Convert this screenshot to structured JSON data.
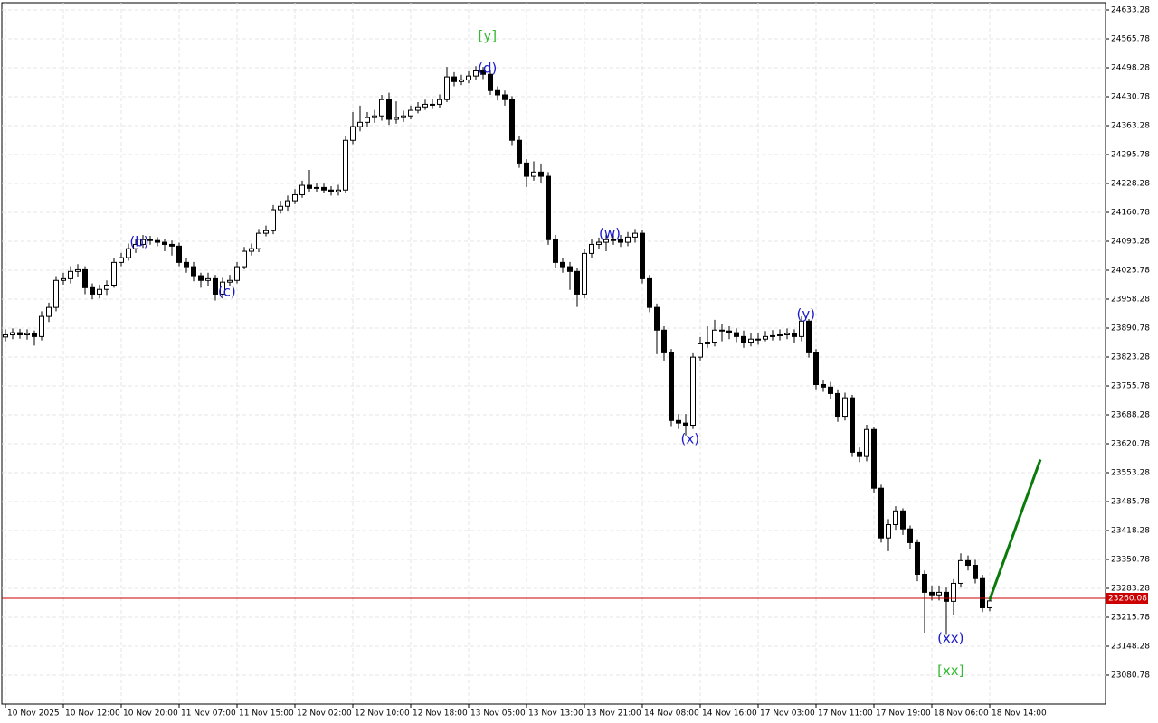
{
  "chart_data": {
    "type": "candlestick",
    "open": [
      23870,
      23875,
      23880,
      23875,
      23878,
      23871,
      23918,
      23939,
      24002,
      24006,
      24023,
      24027,
      23985,
      23970,
      23981,
      23991,
      24044,
      24055,
      24076,
      24086,
      24097,
      24095,
      24091,
      24086,
      24082,
      24044,
      24034,
      24013,
      24002,
      24006,
      23970,
      23998,
      24002,
      24034,
      24070,
      24076,
      24112,
      24118,
      24167,
      24175,
      24188,
      24202,
      24224,
      24217,
      24219,
      24213,
      24209,
      24213,
      24329,
      24361,
      24371,
      24382,
      24386,
      24424,
      24378,
      24382,
      24386,
      24399,
      24407,
      24413,
      24413,
      24424,
      24477,
      24466,
      24470,
      24479,
      24491,
      24483,
      24445,
      24435,
      24424,
      24329,
      24276,
      24245,
      24255,
      24245,
      24097,
      24044,
      24034,
      24023,
      23970,
      24065,
      24086,
      24091,
      24097,
      24097,
      24091,
      24103,
      24112,
      24006,
      23939,
      23886,
      23833,
      23675,
      23669,
      23664,
      23823,
      23854,
      23858,
      23886,
      23884,
      23880,
      23871,
      23858,
      23865,
      23865,
      23871,
      23873,
      23875,
      23878,
      23871,
      23907,
      23833,
      23759,
      23753,
      23738,
      23685,
      23728,
      23601,
      23591,
      23654,
      23517,
      23401,
      23432,
      23464,
      23422,
      23390,
      23316,
      23274,
      23268,
      23274,
      23253,
      23295,
      23348,
      23337,
      23306,
      23238
    ],
    "high": [
      23888,
      23890,
      23889,
      23888,
      23885,
      23930,
      23950,
      24012,
      24020,
      24035,
      24040,
      24035,
      23995,
      23992,
      24002,
      24055,
      24066,
      24088,
      24098,
      24108,
      24106,
      24103,
      24098,
      24095,
      24090,
      24055,
      24045,
      24020,
      24020,
      24015,
      24008,
      24015,
      24045,
      24080,
      24088,
      24122,
      24130,
      24178,
      24188,
      24200,
      24215,
      24235,
      24260,
      24230,
      24228,
      24222,
      24225,
      24340,
      24395,
      24410,
      24395,
      24400,
      24435,
      24440,
      24420,
      24398,
      24410,
      24418,
      24424,
      24425,
      24436,
      24500,
      24488,
      24482,
      24490,
      24502,
      24500,
      24492,
      24455,
      24445,
      24432,
      24338,
      24285,
      24280,
      24275,
      24255,
      24108,
      24055,
      24045,
      24030,
      24075,
      24098,
      24102,
      24108,
      24110,
      24108,
      24115,
      24122,
      24120,
      24015,
      23948,
      23895,
      23842,
      23690,
      23690,
      23832,
      23870,
      23895,
      23910,
      23900,
      23895,
      23890,
      23885,
      23878,
      23880,
      23884,
      23886,
      23888,
      23890,
      23888,
      23918,
      23912,
      23842,
      23770,
      23765,
      23748,
      23740,
      23735,
      23612,
      23665,
      23660,
      23525,
      23445,
      23475,
      23470,
      23430,
      23398,
      23325,
      23290,
      23290,
      23285,
      23305,
      23365,
      23360,
      23350,
      23315,
      23265
    ],
    "low": [
      23860,
      23865,
      23866,
      23864,
      23850,
      23862,
      23905,
      23930,
      23992,
      23995,
      24010,
      23970,
      23958,
      23960,
      23968,
      23985,
      24035,
      24048,
      24066,
      24078,
      24085,
      24082,
      24070,
      24060,
      24035,
      24020,
      24000,
      23985,
      23990,
      23955,
      23960,
      23988,
      23995,
      24028,
      24060,
      24068,
      24105,
      24110,
      24158,
      24165,
      24180,
      24195,
      24208,
      24208,
      24205,
      24200,
      24200,
      24205,
      24320,
      24350,
      24360,
      24370,
      24375,
      24365,
      24368,
      24372,
      24378,
      24392,
      24400,
      24402,
      24405,
      24418,
      24455,
      24458,
      24462,
      24470,
      24472,
      24435,
      24422,
      24410,
      24318,
      24265,
      24220,
      24235,
      24230,
      24085,
      24030,
      24020,
      23980,
      23940,
      23960,
      24055,
      24075,
      24070,
      24085,
      24080,
      24082,
      24090,
      23995,
      23928,
      23830,
      23815,
      23662,
      23655,
      23640,
      23655,
      23815,
      23845,
      23848,
      23860,
      23865,
      23858,
      23845,
      23848,
      23852,
      23860,
      23862,
      23862,
      23865,
      23855,
      23860,
      23822,
      23748,
      23742,
      23725,
      23672,
      23675,
      23590,
      23578,
      23580,
      23505,
      23390,
      23370,
      23420,
      23408,
      23375,
      23300,
      23180,
      23255,
      23255,
      23175,
      23220,
      23285,
      23325,
      23295,
      23228,
      23230
    ],
    "close": [
      23875,
      23880,
      23875,
      23878,
      23871,
      23918,
      23939,
      24002,
      24006,
      24023,
      24027,
      23985,
      23970,
      23981,
      23991,
      24044,
      24055,
      24076,
      24086,
      24097,
      24095,
      24091,
      24086,
      24082,
      24044,
      24034,
      24013,
      24002,
      24006,
      23970,
      23998,
      24002,
      24034,
      24070,
      24076,
      24112,
      24118,
      24167,
      24175,
      24188,
      24202,
      24224,
      24217,
      24219,
      24213,
      24209,
      24213,
      24329,
      24361,
      24371,
      24382,
      24386,
      24424,
      24378,
      24382,
      24386,
      24399,
      24407,
      24413,
      24413,
      24424,
      24477,
      24466,
      24470,
      24479,
      24491,
      24483,
      24445,
      24435,
      24424,
      24329,
      24276,
      24245,
      24255,
      24245,
      24097,
      24044,
      24034,
      24023,
      23970,
      24065,
      24086,
      24091,
      24097,
      24097,
      24091,
      24103,
      24112,
      24006,
      23939,
      23886,
      23833,
      23675,
      23669,
      23664,
      23823,
      23854,
      23858,
      23886,
      23884,
      23880,
      23871,
      23858,
      23865,
      23865,
      23871,
      23873,
      23875,
      23878,
      23871,
      23907,
      23833,
      23759,
      23753,
      23738,
      23685,
      23728,
      23601,
      23591,
      23654,
      23517,
      23401,
      23432,
      23464,
      23422,
      23390,
      23316,
      23274,
      23268,
      23274,
      23253,
      23295,
      23348,
      23337,
      23306,
      23238,
      23254
    ],
    "xticks": [
      {
        "value": 0,
        "label": "10 Nov 2025"
      },
      {
        "value": 8,
        "label": "10 Nov 12:00"
      },
      {
        "value": 16,
        "label": "10 Nov 20:00"
      },
      {
        "value": 24,
        "label": "11 Nov 07:00"
      },
      {
        "value": 32,
        "label": "11 Nov 15:00"
      },
      {
        "value": 40,
        "label": "12 Nov 02:00"
      },
      {
        "value": 48,
        "label": "12 Nov 10:00"
      },
      {
        "value": 56,
        "label": "12 Nov 18:00"
      },
      {
        "value": 64,
        "label": "13 Nov 05:00"
      },
      {
        "value": 72,
        "label": "13 Nov 13:00"
      },
      {
        "value": 80,
        "label": "13 Nov 21:00"
      },
      {
        "value": 88,
        "label": "14 Nov 08:00"
      },
      {
        "value": 96,
        "label": "14 Nov 16:00"
      },
      {
        "value": 104,
        "label": "17 Nov 03:00"
      },
      {
        "value": 112,
        "label": "17 Nov 11:00"
      },
      {
        "value": 120,
        "label": "17 Nov 19:00"
      },
      {
        "value": 128,
        "label": "18 Nov 06:00"
      },
      {
        "value": 136,
        "label": "18 Nov 14:00"
      }
    ],
    "xlim": [
      -0.5,
      152
    ],
    "ylim": [
      23013.28,
      24650.16
    ],
    "yticks": [
      24633.28,
      24565.78,
      24498.28,
      24430.78,
      24363.28,
      24295.78,
      24228.28,
      24160.78,
      24093.28,
      24025.78,
      23958.28,
      23890.78,
      23823.28,
      23755.78,
      23688.28,
      23620.78,
      23553.28,
      23485.78,
      23418.28,
      23350.78,
      23283.28,
      23215.78,
      23148.28,
      23080.78
    ],
    "grid": true,
    "last_price": {
      "value": 23260.08,
      "color": "#cc0000"
    },
    "forecast": {
      "color": "#0a7a0a",
      "x": [
        136,
        143
      ],
      "y": [
        23257,
        23584
      ]
    },
    "annotations": [
      {
        "text": "[y]",
        "x": 66.6,
        "y": 24572,
        "color": "#33bb33"
      },
      {
        "text": "(d)",
        "x": 66.6,
        "y": 24496,
        "color": "#1a1acc"
      },
      {
        "text": "(b)",
        "x": 18.5,
        "y": 24091,
        "color": "#1a1acc"
      },
      {
        "text": "(c)",
        "x": 30.6,
        "y": 23975,
        "color": "#1a1acc"
      },
      {
        "text": "(w)",
        "x": 83.5,
        "y": 24110,
        "color": "#1a1acc"
      },
      {
        "text": "(x)",
        "x": 94.6,
        "y": 23631,
        "color": "#1a1acc"
      },
      {
        "text": "(y)",
        "x": 110.6,
        "y": 23922,
        "color": "#1a1acc"
      },
      {
        "text": "(xx)",
        "x": 130.6,
        "y": 23166,
        "color": "#1a1acc"
      },
      {
        "text": "[xx]",
        "x": 130.6,
        "y": 23090,
        "color": "#33bb33"
      }
    ]
  }
}
